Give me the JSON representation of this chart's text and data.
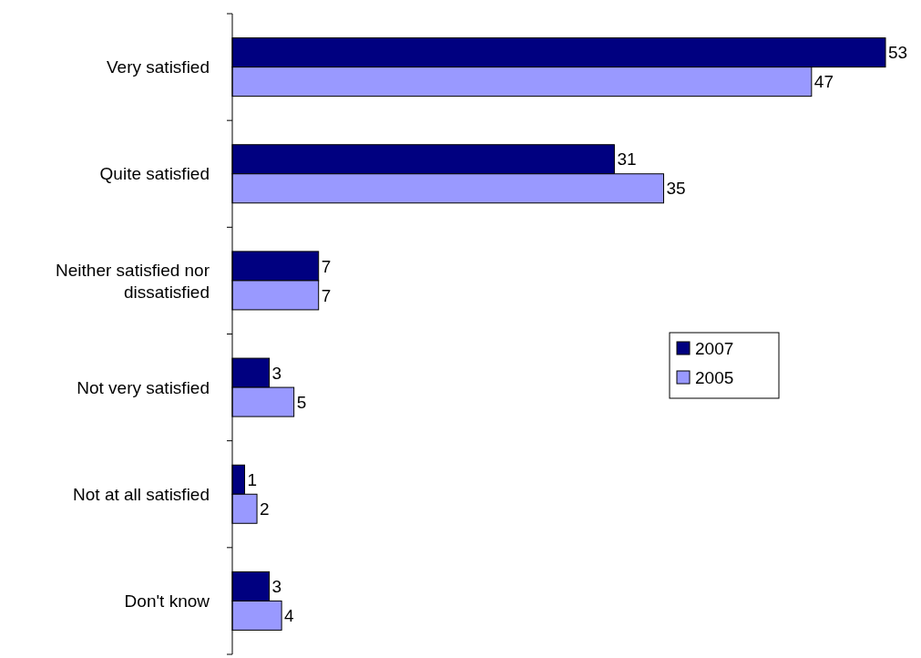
{
  "chart_data": {
    "type": "bar",
    "orientation": "horizontal",
    "categories": [
      "Very satisfied",
      "Quite satisfied",
      "Neither satisfied nor dissatisfied",
      "Not very satisfied",
      "Not at all satisfied",
      "Don't know"
    ],
    "series": [
      {
        "name": "2007",
        "color": "#000080",
        "values": [
          53,
          31,
          7,
          3,
          1,
          3
        ]
      },
      {
        "name": "2005",
        "color": "#9999ff",
        "values": [
          47,
          35,
          7,
          5,
          2,
          4
        ]
      }
    ],
    "data_labels": true,
    "legend": "right"
  }
}
